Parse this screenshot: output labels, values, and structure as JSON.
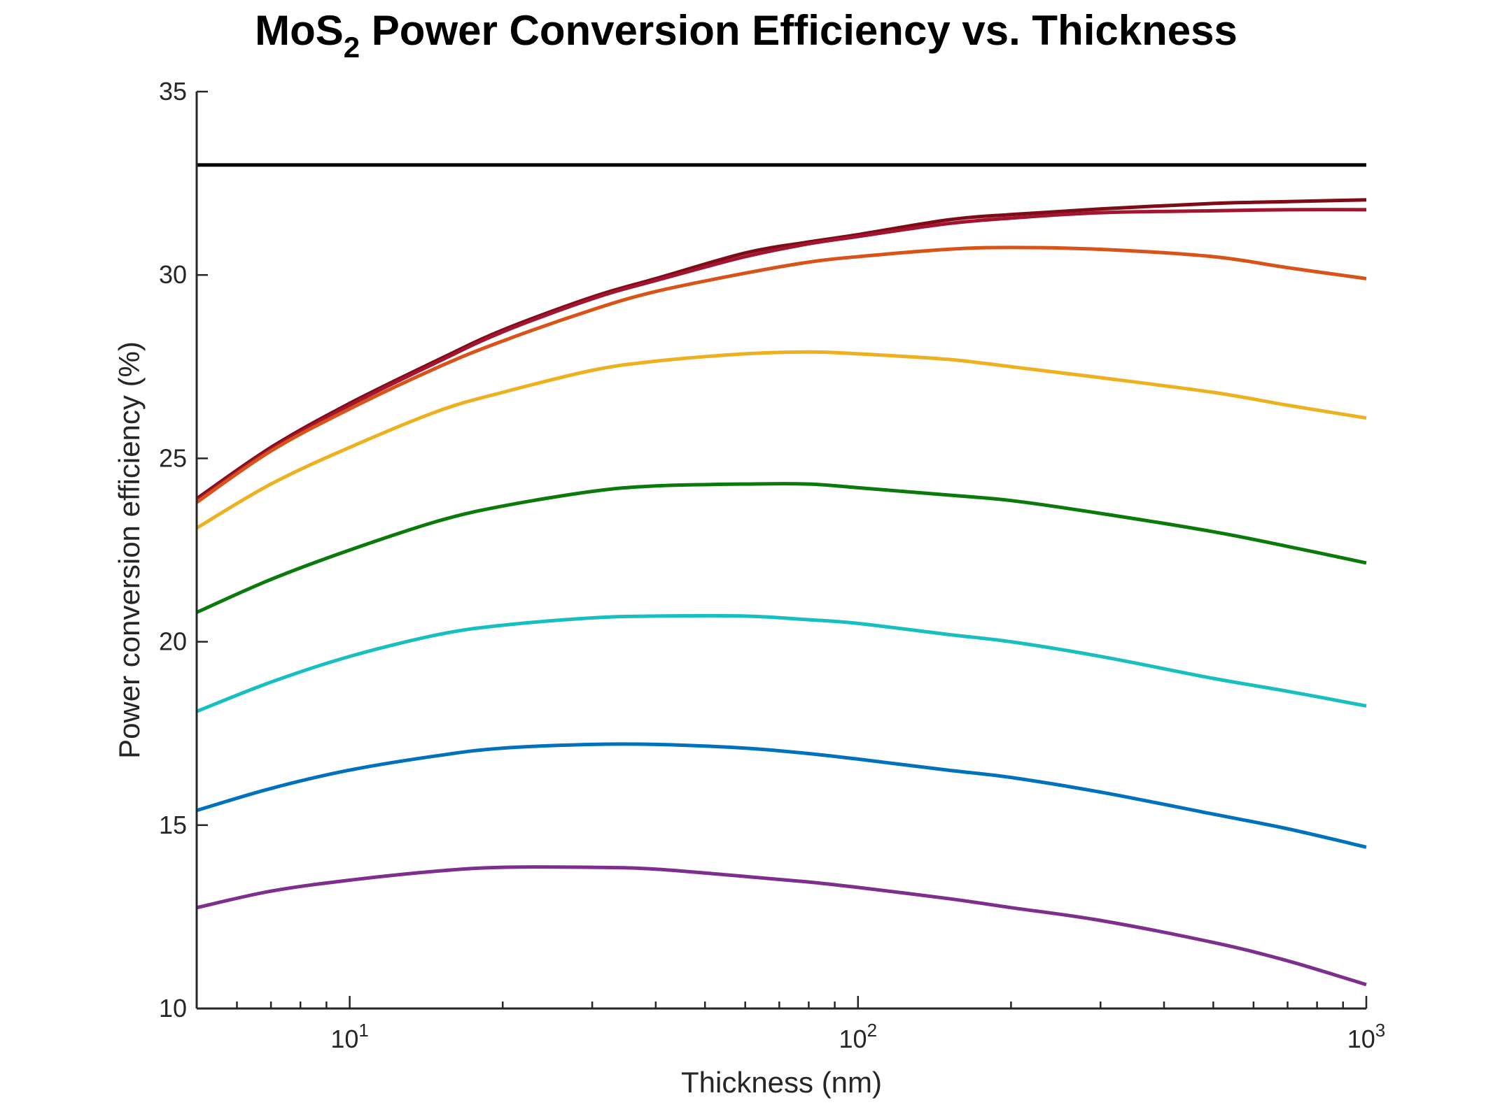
{
  "chart_data": {
    "type": "line",
    "title": {
      "prefix": "MoS",
      "subscript": "2",
      "suffix": " Power Conversion Efficiency vs. Thickness"
    },
    "xlabel": "Thickness (nm)",
    "ylabel": "Power conversion efficiency (%)",
    "xscale": "log",
    "xlim": [
      5,
      1000
    ],
    "ylim": [
      10,
      35
    ],
    "x_ticks": [
      {
        "base": "10",
        "exp": "1",
        "value": 10
      },
      {
        "base": "10",
        "exp": "2",
        "value": 100
      },
      {
        "base": "10",
        "exp": "3",
        "value": 1000
      }
    ],
    "y_ticks": [
      "10",
      "15",
      "20",
      "25",
      "30",
      "35"
    ],
    "grid": false,
    "legend": "none",
    "x": [
      5,
      7,
      10,
      15,
      20,
      30,
      40,
      60,
      80,
      100,
      150,
      200,
      300,
      500,
      700,
      1000
    ],
    "series": [
      {
        "color": "#000000",
        "values": [
          33.0,
          33.0,
          33.0,
          33.0,
          33.0,
          33.0,
          33.0,
          33.0,
          33.0,
          33.0,
          33.0,
          33.0,
          33.0,
          33.0,
          33.0,
          33.0
        ]
      },
      {
        "color": "#7E0C16",
        "values": [
          23.9,
          25.3,
          26.5,
          27.7,
          28.5,
          29.4,
          29.9,
          30.6,
          30.9,
          31.1,
          31.5,
          31.65,
          31.8,
          31.95,
          32.0,
          32.05
        ]
      },
      {
        "color": "#A2142F",
        "values": [
          23.85,
          25.25,
          26.45,
          27.65,
          28.45,
          29.35,
          29.85,
          30.5,
          30.85,
          31.05,
          31.4,
          31.55,
          31.7,
          31.75,
          31.78,
          31.78
        ]
      },
      {
        "color": "#D95319",
        "values": [
          23.8,
          25.2,
          26.35,
          27.5,
          28.2,
          29.05,
          29.55,
          30.05,
          30.35,
          30.5,
          30.7,
          30.75,
          30.7,
          30.5,
          30.2,
          29.9
        ]
      },
      {
        "color": "#EDB120",
        "values": [
          23.1,
          24.3,
          25.3,
          26.3,
          26.8,
          27.4,
          27.65,
          27.85,
          27.9,
          27.85,
          27.7,
          27.5,
          27.2,
          26.8,
          26.45,
          26.1
        ]
      },
      {
        "color": "#0A7B0A",
        "values": [
          20.8,
          21.7,
          22.5,
          23.3,
          23.7,
          24.1,
          24.25,
          24.3,
          24.3,
          24.2,
          24.0,
          23.85,
          23.5,
          23.0,
          22.6,
          22.15
        ]
      },
      {
        "color": "#17BFC1",
        "values": [
          18.1,
          18.9,
          19.6,
          20.2,
          20.45,
          20.65,
          20.7,
          20.7,
          20.6,
          20.5,
          20.2,
          20.0,
          19.6,
          19.0,
          18.65,
          18.25
        ]
      },
      {
        "color": "#0072BD",
        "values": [
          15.4,
          16.0,
          16.5,
          16.9,
          17.1,
          17.2,
          17.2,
          17.1,
          16.95,
          16.8,
          16.5,
          16.3,
          15.9,
          15.3,
          14.9,
          14.4
        ]
      },
      {
        "color": "#7E2F8E",
        "values": [
          12.75,
          13.2,
          13.5,
          13.75,
          13.85,
          13.85,
          13.8,
          13.6,
          13.45,
          13.3,
          13.0,
          12.75,
          12.4,
          11.8,
          11.3,
          10.65
        ]
      }
    ]
  }
}
